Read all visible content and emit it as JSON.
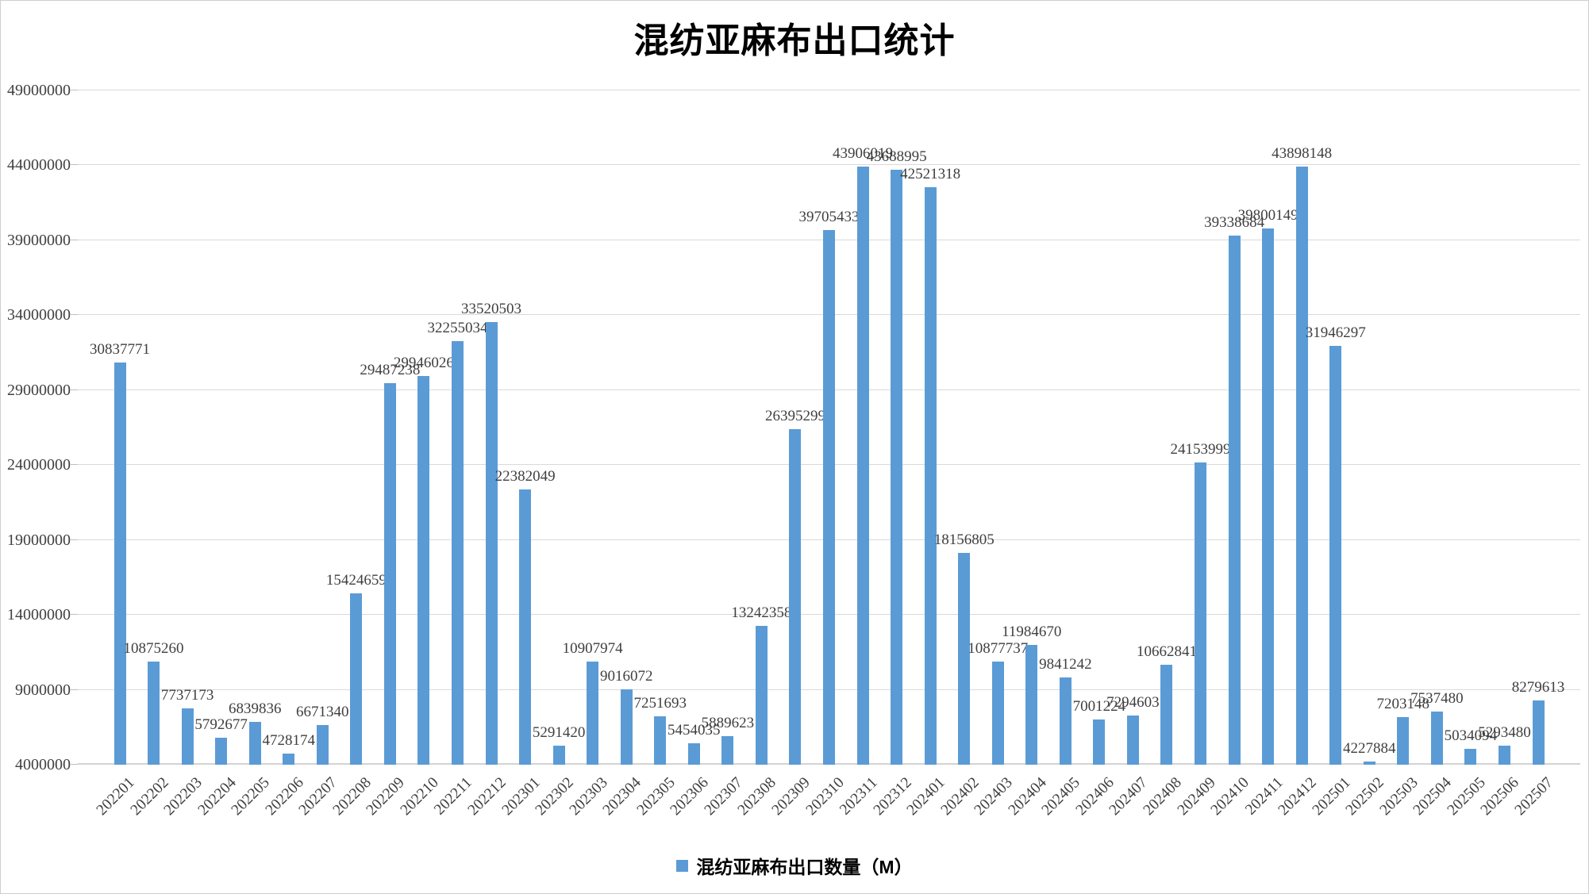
{
  "title": "混纺亚麻布出口统计",
  "legend": {
    "label": "混纺亚麻布出口数量（M）",
    "swatch_color": "#5b9bd5",
    "swatch_icon": "legend-square-icon"
  },
  "colors": {
    "bar": "#5b9bd5",
    "gridline": "#d9d9d9",
    "axis_text": "#404040",
    "title_text": "#000000",
    "background": "#ffffff"
  },
  "chart_data": {
    "type": "bar",
    "title": "混纺亚麻布出口统计",
    "series_name": "混纺亚麻布出口数量（M）",
    "xlabel": "",
    "ylabel": "",
    "ylim": [
      4000000,
      49000000
    ],
    "ytick_step": 5000000,
    "yticks": [
      49000000,
      44000000,
      39000000,
      34000000,
      29000000,
      24000000,
      19000000,
      14000000,
      9000000,
      4000000
    ],
    "grid": true,
    "legend_position": "bottom",
    "data_labels": true,
    "categories": [
      "202201",
      "202202",
      "202203",
      "202204",
      "202205",
      "202206",
      "202207",
      "202208",
      "202209",
      "202210",
      "202211",
      "202212",
      "202301",
      "202302",
      "202303",
      "202304",
      "202305",
      "202306",
      "202307",
      "202308",
      "202309",
      "202310",
      "202311",
      "202312",
      "202401",
      "202402",
      "202403",
      "202404",
      "202405",
      "202406",
      "202407",
      "202408",
      "202409",
      "202410",
      "202411",
      "202412",
      "202501",
      "202502",
      "202503",
      "202504",
      "202505",
      "202506",
      "202507"
    ],
    "values": [
      30837771,
      10875260,
      7737173,
      5792677,
      6839836,
      4728174,
      6671340,
      15424659,
      29487238,
      29946026,
      32255034,
      33520503,
      22382049,
      5291420,
      10907974,
      9016072,
      7251693,
      5454035,
      5889623,
      13242358,
      26395299,
      39705433,
      43906019,
      43688995,
      42521318,
      18156805,
      10877737,
      11984670,
      9841242,
      7001224,
      7294603,
      10662841,
      24153999,
      39338684,
      39800149,
      43898148,
      31946297,
      4227884,
      7203148,
      7537480,
      5034094,
      5293480,
      8279613
    ]
  }
}
